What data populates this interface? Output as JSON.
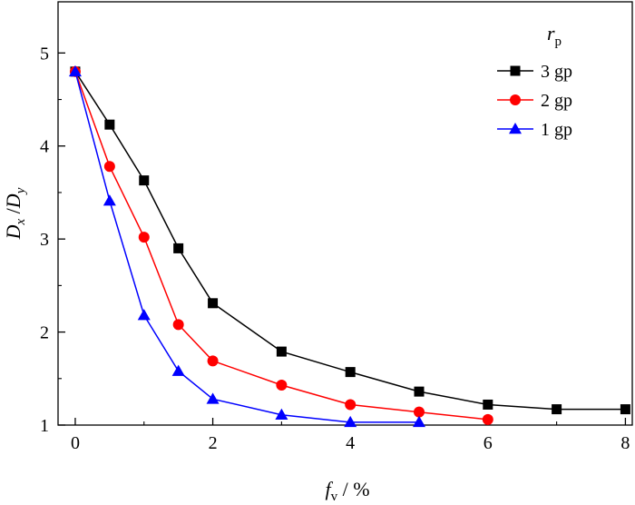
{
  "chart_data": {
    "type": "line",
    "xlabel": {
      "main": "f",
      "sub": "v",
      "unit": " / %"
    },
    "ylabel": {
      "num": "D",
      "num_sub": "x",
      "slash": " /",
      "den": "D",
      "den_sub": "y"
    },
    "xlim": [
      -0.25,
      8.1
    ],
    "ylim": [
      1.0,
      5.55
    ],
    "xticks": [
      0,
      2,
      4,
      6,
      8
    ],
    "yticks": [
      1,
      2,
      3,
      4,
      5
    ],
    "legend": {
      "title_main": "r",
      "title_sub": "p",
      "position": "top-right"
    },
    "series": [
      {
        "name": "3 gp",
        "color": "#000000",
        "marker": "square",
        "x": [
          0,
          0.5,
          1,
          1.5,
          2,
          3,
          4,
          5,
          6,
          7,
          8
        ],
        "y": [
          4.8,
          4.23,
          3.63,
          2.9,
          2.31,
          1.79,
          1.57,
          1.36,
          1.22,
          1.17,
          1.17
        ]
      },
      {
        "name": "2 gp",
        "color": "#ff0000",
        "marker": "circle",
        "x": [
          0,
          0.5,
          1,
          1.5,
          2,
          3,
          4,
          5,
          6
        ],
        "y": [
          4.8,
          3.78,
          3.02,
          2.08,
          1.69,
          1.43,
          1.22,
          1.14,
          1.06
        ]
      },
      {
        "name": "1 gp",
        "color": "#0000ff",
        "marker": "triangle",
        "x": [
          0,
          0.5,
          1,
          1.5,
          2,
          3,
          4,
          5
        ],
        "y": [
          4.8,
          3.41,
          2.18,
          1.58,
          1.28,
          1.11,
          1.03,
          1.03
        ]
      }
    ]
  }
}
